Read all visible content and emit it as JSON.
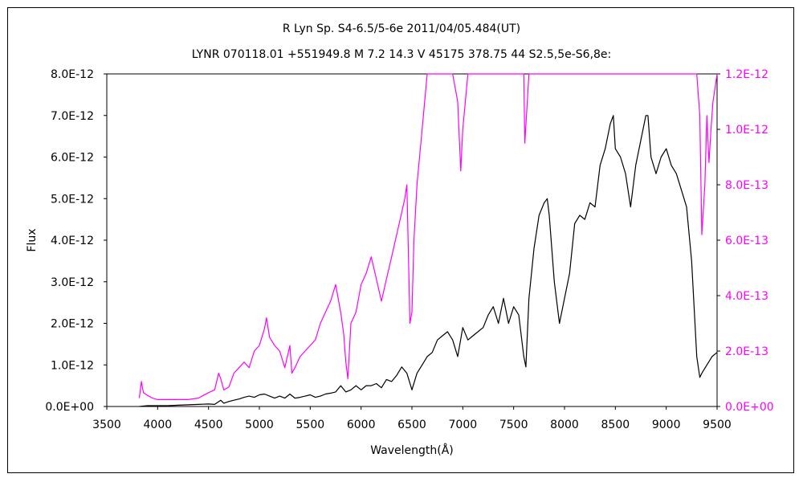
{
  "chart_data": {
    "type": "line",
    "title": "R Lyn    Sp. S4-6.5/5-6e    2011/04/05.484(UT)",
    "subtitle": "LYNR 070118.01 +551949.8 M 7.2 14.3 V 45175 378.75 44 S2.5,5e-S6,8e:",
    "xlabel": "Wavelength(Å)",
    "ylabel": "Flux",
    "xlim": [
      3500,
      9500
    ],
    "ylim": [
      0,
      8e-12
    ],
    "y2lim": [
      0,
      1.2e-12
    ],
    "grid": false,
    "x_ticks": [
      "3500",
      "4000",
      "4500",
      "5000",
      "5500",
      "6000",
      "6500",
      "7000",
      "7500",
      "8000",
      "8500",
      "9000",
      "9500"
    ],
    "y_ticks": [
      "0.0E+00",
      "1.0E-12",
      "2.0E-12",
      "3.0E-12",
      "4.0E-12",
      "5.0E-12",
      "6.0E-12",
      "7.0E-12",
      "8.0E-12"
    ],
    "y2_ticks": [
      "0.0E+00",
      "2.0E-13",
      "4.0E-13",
      "6.0E-13",
      "8.0E-13",
      "1.0E-12",
      "1.2E-12"
    ],
    "series": [
      {
        "axis": "left",
        "color": "#000000",
        "x": [
          3820,
          3900,
          4000,
          4100,
          4200,
          4300,
          4400,
          4500,
          4560,
          4620,
          4650,
          4700,
          4750,
          4800,
          4850,
          4900,
          4950,
          5000,
          5050,
          5100,
          5150,
          5200,
          5250,
          5300,
          5350,
          5400,
          5450,
          5500,
          5550,
          5600,
          5650,
          5700,
          5750,
          5800,
          5850,
          5900,
          5950,
          6000,
          6050,
          6100,
          6150,
          6200,
          6250,
          6300,
          6350,
          6400,
          6450,
          6500,
          6550,
          6600,
          6650,
          6700,
          6750,
          6800,
          6850,
          6900,
          6950,
          7000,
          7050,
          7100,
          7150,
          7200,
          7250,
          7300,
          7350,
          7400,
          7450,
          7500,
          7550,
          7600,
          7620,
          7650,
          7700,
          7750,
          7800,
          7830,
          7850,
          7900,
          7950,
          8000,
          8050,
          8100,
          8150,
          8200,
          8250,
          8300,
          8350,
          8400,
          8450,
          8480,
          8500,
          8550,
          8600,
          8650,
          8700,
          8750,
          8800,
          8820,
          8850,
          8900,
          8950,
          9000,
          9050,
          9100,
          9150,
          9200,
          9250,
          9300,
          9330,
          9350,
          9400,
          9450,
          9500
        ],
        "y": [
          0.0,
          2e-14,
          2e-14,
          2e-14,
          3e-14,
          4e-14,
          5e-14,
          6e-14,
          5e-14,
          1.5e-13,
          8e-14,
          1.2e-13,
          1.5e-13,
          1.8e-13,
          2.2e-13,
          2.5e-13,
          2.2e-13,
          2.8e-13,
          3e-13,
          2.5e-13,
          2e-13,
          2.5e-13,
          2e-13,
          3e-13,
          2e-13,
          2.2e-13,
          2.5e-13,
          2.8e-13,
          2.2e-13,
          2.5e-13,
          3e-13,
          3.2e-13,
          3.5e-13,
          5e-13,
          3.5e-13,
          4e-13,
          5e-13,
          4e-13,
          5e-13,
          5e-13,
          5.5e-13,
          4.5e-13,
          6.5e-13,
          6e-13,
          7.5e-13,
          9.5e-13,
          8e-13,
          4e-13,
          8e-13,
          1e-12,
          1.2e-12,
          1.3e-12,
          1.6e-12,
          1.7e-12,
          1.8e-12,
          1.6e-12,
          1.2e-12,
          1.9e-12,
          1.6e-12,
          1.7e-12,
          1.8e-12,
          1.9e-12,
          2.2e-12,
          2.4e-12,
          2e-12,
          2.6e-12,
          2e-12,
          2.4e-12,
          2.2e-12,
          1.2e-12,
          9.5e-13,
          2.6e-12,
          3.8e-12,
          4.6e-12,
          4.9e-12,
          5e-12,
          4.6e-12,
          3e-12,
          2e-12,
          2.6e-12,
          3.2e-12,
          4.4e-12,
          4.6e-12,
          4.5e-12,
          4.9e-12,
          4.8e-12,
          5.8e-12,
          6.2e-12,
          6.8e-12,
          7e-12,
          6.2e-12,
          6e-12,
          5.6e-12,
          4.8e-12,
          5.8e-12,
          6.4e-12,
          7e-12,
          7e-12,
          6e-12,
          5.6e-12,
          6e-12,
          6.2e-12,
          5.8e-12,
          5.6e-12,
          5.2e-12,
          4.8e-12,
          3.5e-12,
          1.2e-12,
          7e-13,
          8e-13,
          1e-12,
          1.2e-12,
          1.3e-12
        ]
      },
      {
        "axis": "right",
        "color": "#ff00ff",
        "x": [
          3820,
          3840,
          3860,
          3900,
          3950,
          4000,
          4100,
          4200,
          4300,
          4400,
          4450,
          4500,
          4560,
          4600,
          4620,
          4650,
          4700,
          4750,
          4800,
          4850,
          4900,
          4950,
          5000,
          5050,
          5070,
          5100,
          5150,
          5200,
          5250,
          5300,
          5320,
          5350,
          5400,
          5450,
          5500,
          5550,
          5600,
          5650,
          5700,
          5750,
          5800,
          5830,
          5850,
          5870,
          5900,
          5950,
          6000,
          6050,
          6100,
          6150,
          6200,
          6250,
          6300,
          6350,
          6400,
          6430,
          6450,
          6480,
          6500,
          6520,
          6550,
          6600,
          6650,
          6700,
          6750,
          6800,
          6850,
          6900,
          6950,
          6980,
          7000,
          7050,
          7100,
          7150,
          7200,
          7300,
          7400,
          7500,
          7600,
          7610,
          7650,
          7700,
          7800,
          7900,
          8000,
          8100,
          8200,
          8300,
          8400,
          8500,
          8600,
          8700,
          8800,
          8900,
          9000,
          9100,
          9200,
          9250,
          9300,
          9330,
          9350,
          9380,
          9400,
          9420,
          9440,
          9460,
          9480,
          9500
        ],
        "y": [
          3e-14,
          9e-14,
          5e-14,
          4e-14,
          3e-14,
          2.5e-14,
          2.5e-14,
          2.5e-14,
          2.5e-14,
          3e-14,
          4e-14,
          5e-14,
          6e-14,
          1.2e-13,
          1e-13,
          6e-14,
          7e-14,
          1.2e-13,
          1.4e-13,
          1.6e-13,
          1.4e-13,
          2e-13,
          2.2e-13,
          2.8e-13,
          3.2e-13,
          2.5e-13,
          2.2e-13,
          2e-13,
          1.4e-13,
          2.2e-13,
          1.2e-13,
          1.4e-13,
          1.8e-13,
          2e-13,
          2.2e-13,
          2.4e-13,
          3e-13,
          3.4e-13,
          3.8e-13,
          4.4e-13,
          3.4e-13,
          2.6e-13,
          1.6e-13,
          1e-13,
          3e-13,
          3.4e-13,
          4.4e-13,
          4.8e-13,
          5.4e-13,
          4.6e-13,
          3.8e-13,
          4.6e-13,
          5.4e-13,
          6.2e-13,
          7e-13,
          7.5e-13,
          8e-13,
          3e-13,
          3.4e-13,
          6e-13,
          8e-13,
          1e-12,
          1.2e-12,
          1.2e-12,
          1.2e-12,
          1.2e-12,
          1.2e-12,
          1.2e-12,
          1.1e-12,
          8.5e-13,
          1e-12,
          1.2e-12,
          1.2e-12,
          1.2e-12,
          1.2e-12,
          1.2e-12,
          1.2e-12,
          1.2e-12,
          1.2e-12,
          9.5e-13,
          1.2e-12,
          1.2e-12,
          1.2e-12,
          1.2e-12,
          1.2e-12,
          1.2e-12,
          1.2e-12,
          1.2e-12,
          1.2e-12,
          1.2e-12,
          1.2e-12,
          1.2e-12,
          1.2e-12,
          1.2e-12,
          1.2e-12,
          1.2e-12,
          1.2e-12,
          1.2e-12,
          1.2e-12,
          1.05e-12,
          6.2e-13,
          8e-13,
          1.05e-12,
          8.8e-13,
          1e-12,
          1.1e-12,
          1.15e-12,
          1.2e-12
        ]
      }
    ]
  }
}
